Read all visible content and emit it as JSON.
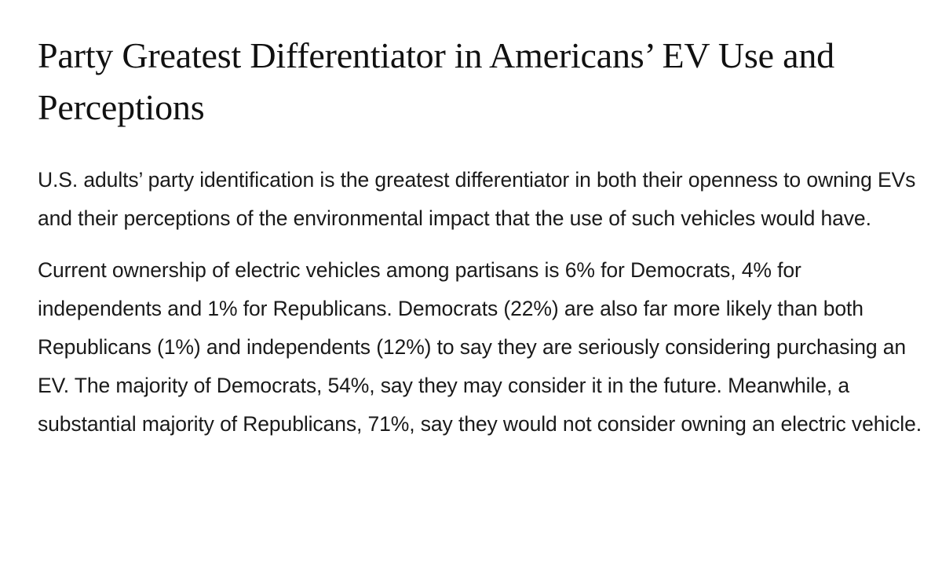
{
  "article": {
    "headline": "Party Greatest Differentiator in Americans’ EV Use and Perceptions",
    "paragraphs": [
      "U.S. adults’ party identification is the greatest differentiator in both their openness to owning EVs and their perceptions of the environmental impact that the use of such vehicles would have.",
      "Current ownership of electric vehicles among partisans is 6% for Democrats, 4% for independents and 1% for Republicans. Democrats (22%) are also far more likely than both Republicans (1%) and independents (12%) to say they are seriously considering purchasing an EV. The majority of Democrats, 54%, say they may consider it in the future. Meanwhile, a substantial majority of Republicans, 71%, say they would not consider owning an electric vehicle."
    ]
  }
}
